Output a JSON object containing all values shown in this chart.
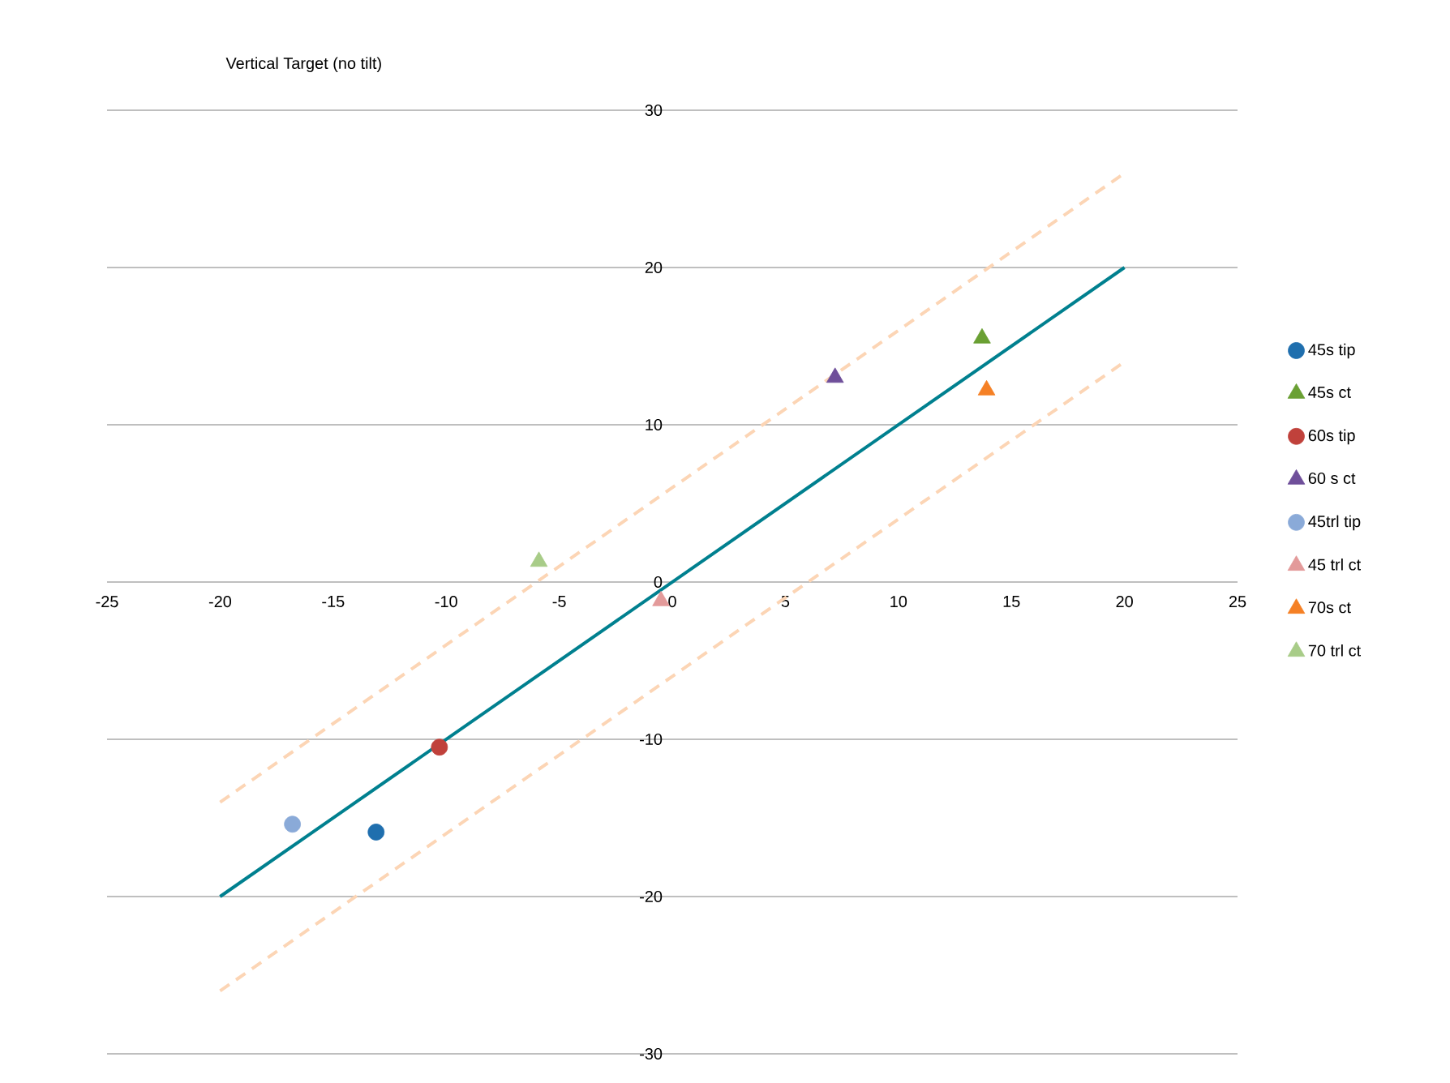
{
  "chart_data": {
    "type": "scatter",
    "title": "Vertical Target (no tilt)",
    "xlim": [
      -25,
      25
    ],
    "xticks": [
      -25,
      -20,
      -15,
      -10,
      -5,
      0,
      5,
      10,
      15,
      20,
      25
    ],
    "ylim": [
      -30,
      30
    ],
    "yticks": [
      -30,
      -20,
      -10,
      0,
      10,
      20,
      30
    ],
    "grid": "y",
    "legend": "right",
    "series": [
      {
        "name": "45s tip",
        "color": "#1f6fae",
        "marker": "circle",
        "x": [
          -13.1
        ],
        "values": [
          -15.9
        ]
      },
      {
        "name": "45s ct",
        "color": "#6aa033",
        "marker": "triangle",
        "x": [
          13.7
        ],
        "values": [
          15.5
        ]
      },
      {
        "name": "60s tip",
        "color": "#c0413b",
        "marker": "circle",
        "x": [
          -10.3
        ],
        "values": [
          -10.5
        ]
      },
      {
        "name": "60 s ct",
        "color": "#6f4f9a",
        "marker": "triangle",
        "x": [
          7.2
        ],
        "values": [
          13.0
        ]
      },
      {
        "name": "45trl tip",
        "color": "#8aaad8",
        "marker": "circle",
        "x": [
          -16.8
        ],
        "values": [
          -15.4
        ]
      },
      {
        "name": "45 trl ct",
        "color": "#e39a9a",
        "marker": "triangle",
        "x": [
          -0.5
        ],
        "values": [
          -1.2
        ]
      },
      {
        "name": "70s ct",
        "color": "#f58025",
        "marker": "triangle",
        "x": [
          13.9
        ],
        "values": [
          12.2
        ]
      },
      {
        "name": "70 trl ct",
        "color": "#a8cc88",
        "marker": "triangle",
        "x": [
          -5.9
        ],
        "values": [
          1.3
        ]
      },
      {
        "type": "line",
        "color": "#00808f",
        "line_style": "solid",
        "marker": "none",
        "x": [
          -20,
          20
        ],
        "values": [
          -20,
          20
        ]
      },
      {
        "type": "line",
        "color": "#fcd5b5",
        "line_style": "dashed",
        "marker": "none",
        "x": [
          -20,
          20
        ],
        "values": [
          -14,
          26
        ]
      },
      {
        "type": "line",
        "color": "#fcd5b5",
        "line_style": "dashed",
        "marker": "none",
        "x": [
          -20,
          20
        ],
        "values": [
          -26,
          14
        ]
      }
    ]
  }
}
